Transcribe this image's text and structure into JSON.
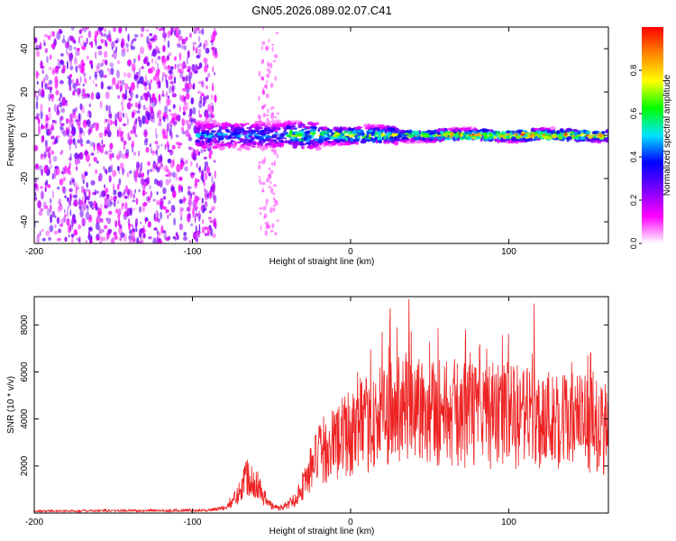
{
  "title": "GN05.2026.089.02.07.C41",
  "chart_data": [
    {
      "type": "heatmap",
      "name": "spectrogram",
      "xlabel": "Height of straight line (km)",
      "ylabel": "Frequency (Hz)",
      "xlim": [
        -200,
        163
      ],
      "ylim": [
        -50,
        50
      ],
      "xticks": [
        -200,
        -100,
        0,
        100
      ],
      "xtick_labels": [
        "-200",
        "-100",
        "0",
        "100"
      ],
      "yticks": [
        -40,
        -20,
        0,
        20,
        40
      ],
      "ytick_labels": [
        "-40",
        "-20",
        "0",
        "20",
        "40"
      ],
      "noise_region_x": [
        -200,
        -85
      ],
      "signal_start_x": -98,
      "colorbar": {
        "label": "Normalized spectral amplitude",
        "range": [
          0,
          1
        ],
        "ticks": [
          0.0,
          0.2,
          0.4,
          0.6,
          0.8
        ],
        "tick_labels": [
          "0.0",
          "0.2",
          "0.4",
          "0.6",
          "0.8"
        ],
        "colors": [
          "#ffffff",
          "#ff00ff",
          "#7a00ff",
          "#0000ff",
          "#00e5ff",
          "#00ff00",
          "#ffff00",
          "#ff8800",
          "#ff0000"
        ]
      }
    },
    {
      "type": "line",
      "name": "snr",
      "xlabel": "Height of straight line (km)",
      "ylabel": "SNR (10 * v/v)",
      "xlim": [
        -200,
        163
      ],
      "ylim": [
        0,
        9200
      ],
      "xticks": [
        -200,
        -100,
        0,
        100
      ],
      "xtick_labels": [
        "-200",
        "-100",
        "0",
        "100"
      ],
      "yticks": [
        2000,
        4000,
        6000,
        8000
      ],
      "ytick_labels": [
        "2000",
        "4000",
        "6000",
        "8000"
      ],
      "line_color": "#ee2222",
      "envelope": {
        "x": [
          -200,
          -90,
          -80,
          -72,
          -66,
          -60,
          -55,
          -50,
          -45,
          -40,
          -35,
          -30,
          -25,
          -20,
          -10,
          0,
          10,
          20,
          30,
          40,
          50,
          60,
          70,
          80,
          90,
          100,
          110,
          120,
          130,
          140,
          150,
          163
        ],
        "y": [
          80,
          120,
          200,
          700,
          1600,
          1400,
          700,
          300,
          200,
          350,
          600,
          1200,
          1900,
          2500,
          3000,
          3400,
          3700,
          4100,
          4400,
          4500,
          4450,
          4300,
          4200,
          4150,
          4150,
          4100,
          4050,
          4050,
          4000,
          3900,
          3800,
          3500
        ]
      },
      "peaks": [
        {
          "x": 37,
          "y": 9100
        },
        {
          "x": 25,
          "y": 8700
        },
        {
          "x": 116,
          "y": 8900
        },
        {
          "x": 20,
          "y": 7700
        },
        {
          "x": 50,
          "y": 7300
        },
        {
          "x": 150,
          "y": 6700
        }
      ]
    }
  ]
}
